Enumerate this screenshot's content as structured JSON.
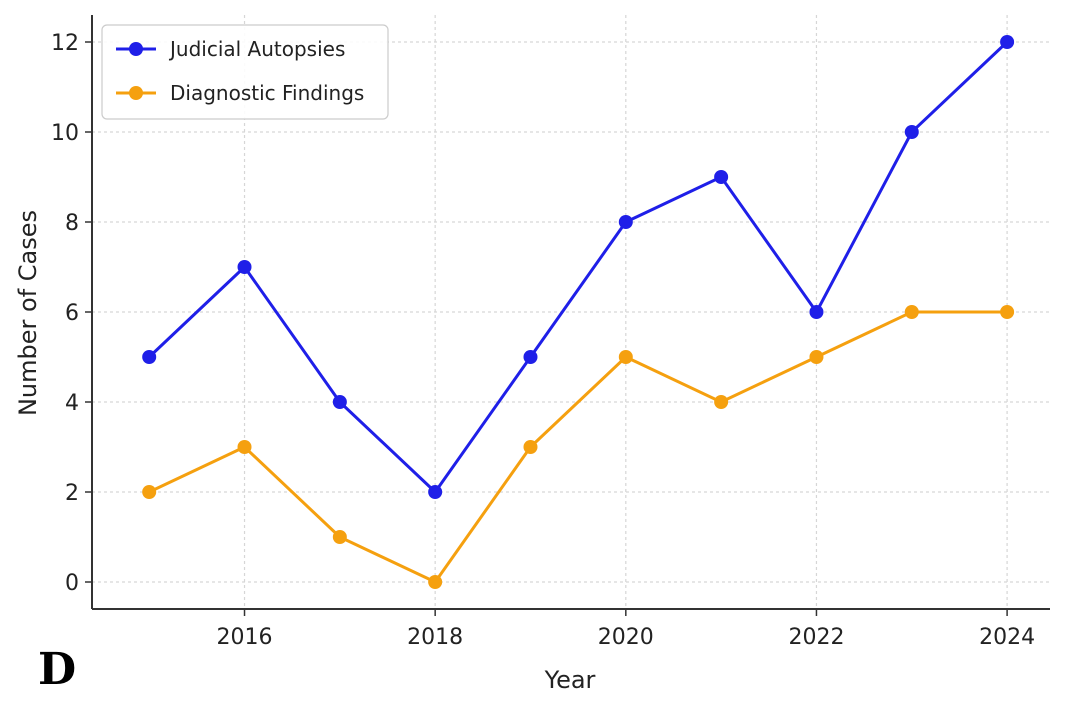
{
  "panel_label": "D",
  "chart_data": {
    "type": "line",
    "title": "",
    "xlabel": "Year",
    "ylabel": "Number of Cases",
    "x": [
      2015,
      2016,
      2017,
      2018,
      2019,
      2020,
      2021,
      2022,
      2023,
      2024
    ],
    "xticks": [
      2016,
      2018,
      2020,
      2022,
      2024
    ],
    "yticks": [
      0,
      2,
      4,
      6,
      8,
      10,
      12
    ],
    "xlim": [
      2014.4,
      2024.45
    ],
    "ylim": [
      -0.6,
      12.6
    ],
    "grid": true,
    "legend_position": "top-left",
    "series": [
      {
        "name": "Judicial Autopsies",
        "color": "#1f1fe8",
        "values": [
          5,
          7,
          4,
          2,
          5,
          8,
          9,
          6,
          10,
          12
        ]
      },
      {
        "name": "Diagnostic Findings",
        "color": "#f5a00f",
        "values": [
          2,
          3,
          1,
          0,
          3,
          5,
          4,
          5,
          6,
          6
        ]
      }
    ]
  }
}
